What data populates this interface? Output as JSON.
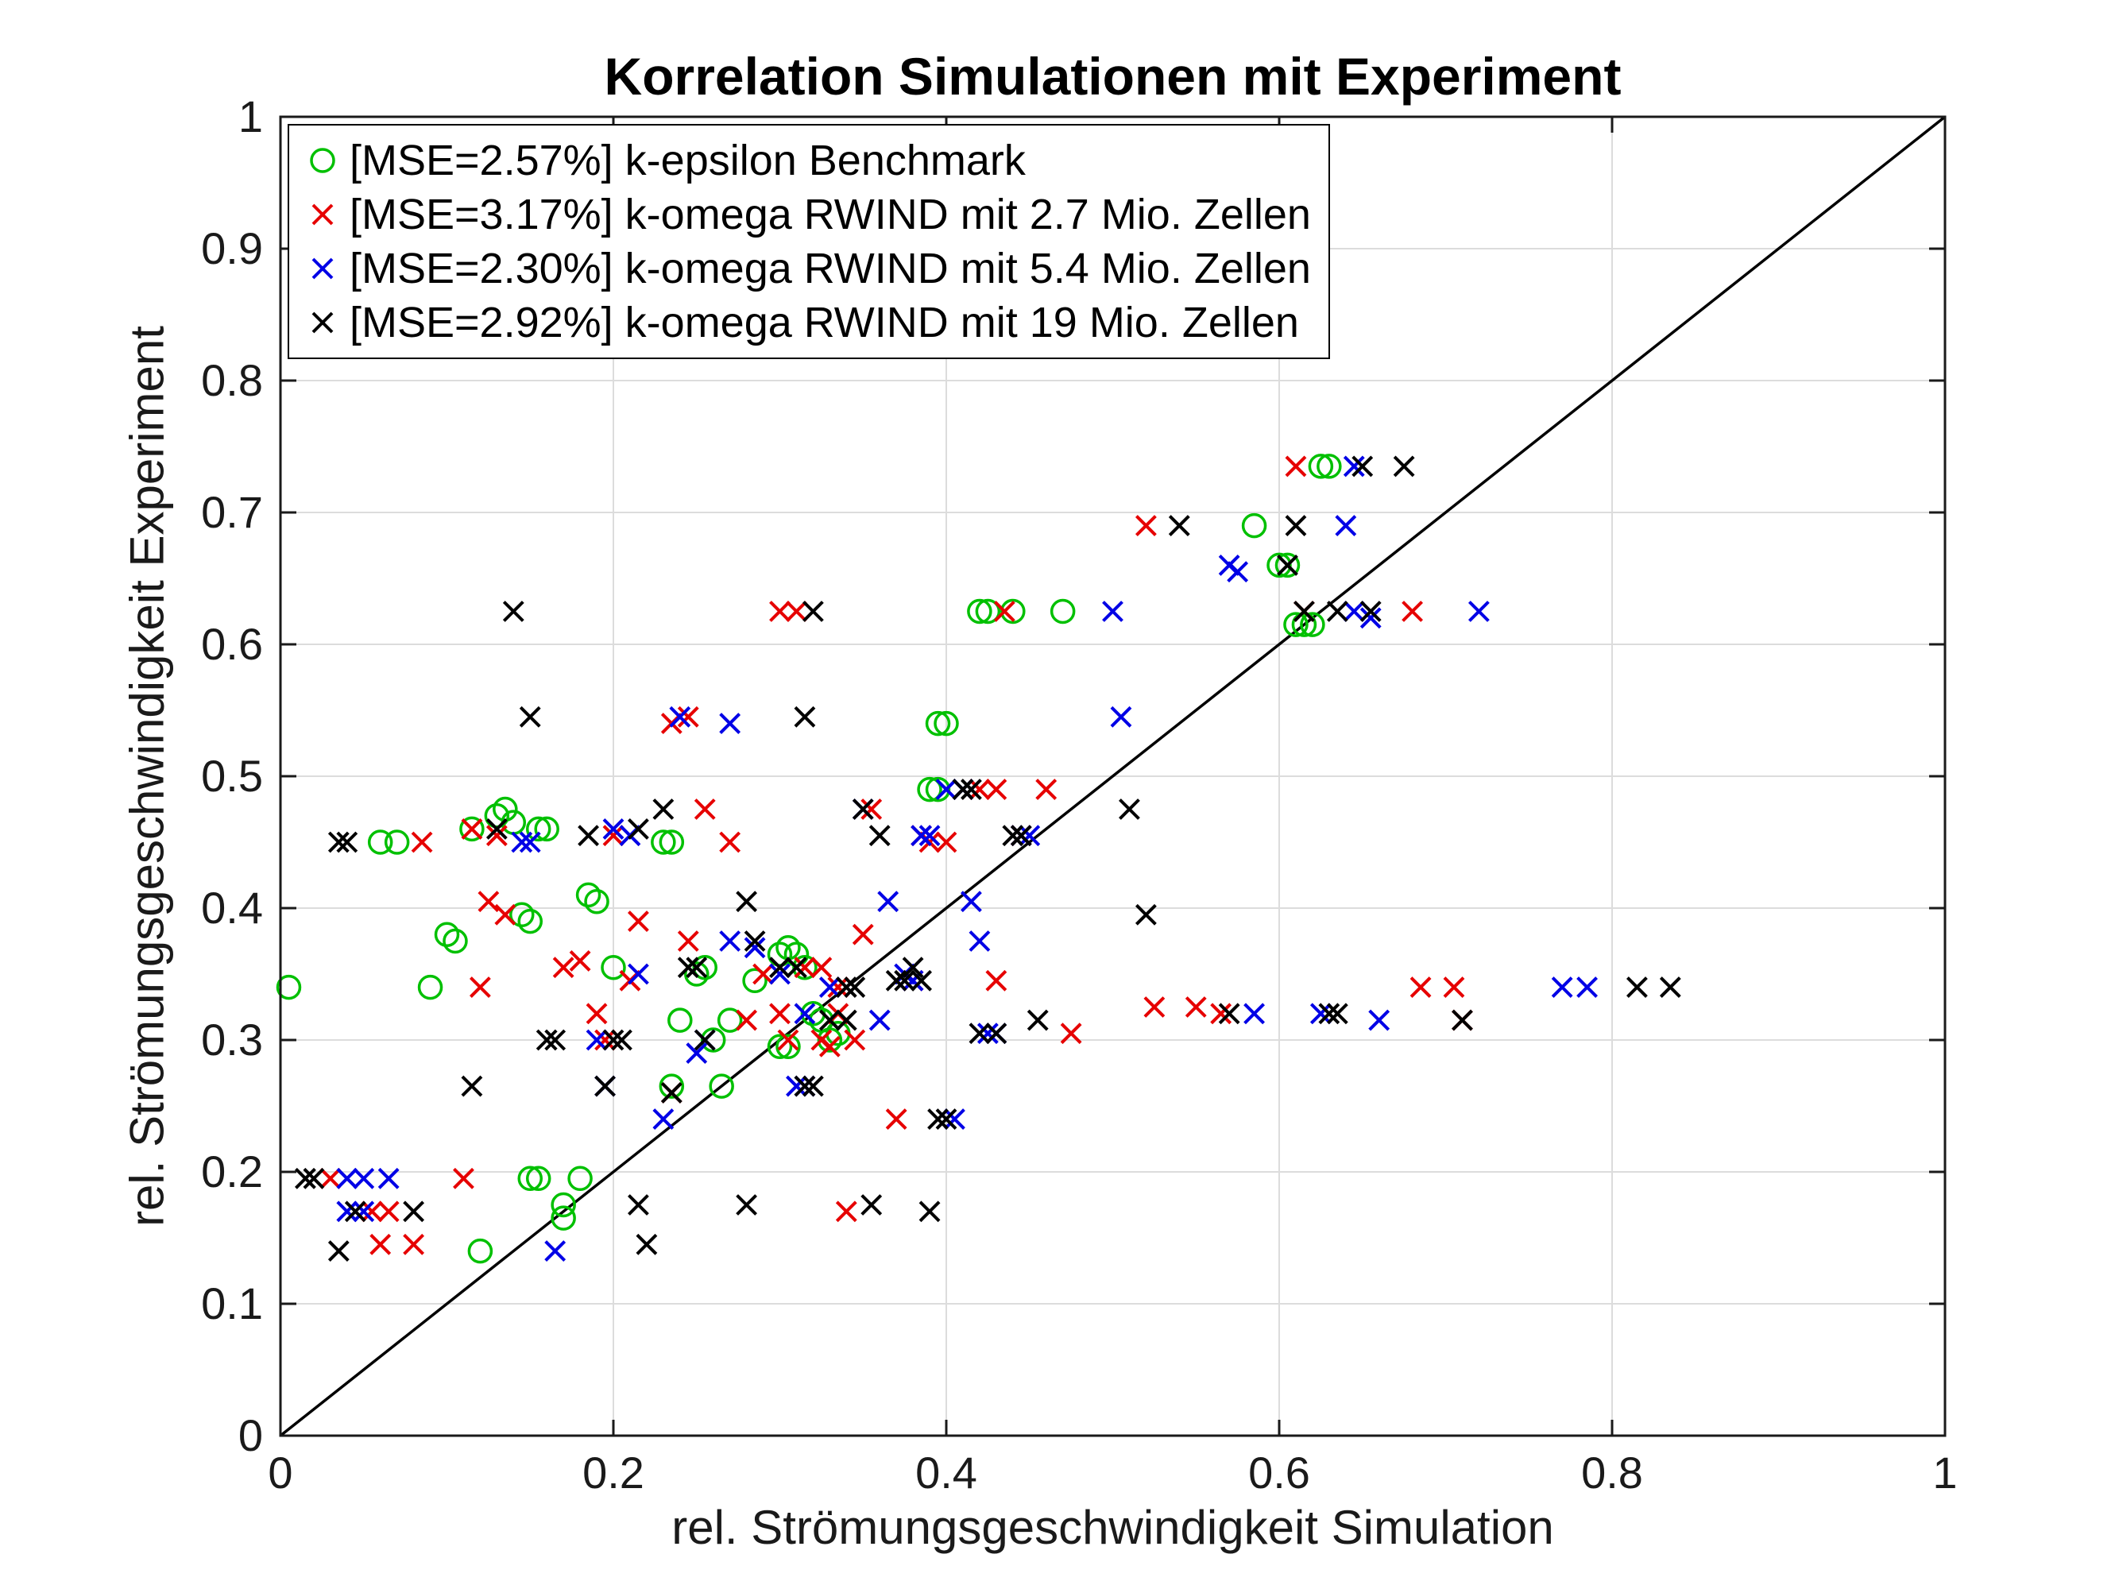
{
  "figure": {
    "background": "#ffffff",
    "text_color": "#1a1a1a",
    "axis_color": "#1a1a1a",
    "grid_color": "#dcdcdc"
  },
  "chart_data": {
    "type": "scatter",
    "title": "Korrelation Simulationen mit Experiment",
    "xlabel": "rel. Strömungsgeschwindigkeit Simulation",
    "ylabel": "rel. Strömungsgeschwindigkeit Experiment",
    "xlim": [
      0,
      1
    ],
    "ylim": [
      0,
      1
    ],
    "xticks": [
      0,
      0.2,
      0.4,
      0.6,
      0.8,
      1
    ],
    "xtick_labels": [
      "0",
      "0.2",
      "0.4",
      "0.6",
      "0.8",
      "1"
    ],
    "yticks": [
      0,
      0.1,
      0.2,
      0.3,
      0.4,
      0.5,
      0.6,
      0.7,
      0.8,
      0.9,
      1
    ],
    "ytick_labels": [
      "0",
      "0.1",
      "0.2",
      "0.3",
      "0.4",
      "0.5",
      "0.6",
      "0.7",
      "0.8",
      "0.9",
      "1"
    ],
    "grid": true,
    "legend_position": "top-left",
    "identity_line": {
      "from": [
        0,
        0
      ],
      "to": [
        1,
        1
      ],
      "color": "#000000"
    },
    "series": [
      {
        "name": "[MSE=2.57%] k-epsilon Benchmark",
        "mse_percent": 2.57,
        "marker": "circle",
        "color": "#00c000",
        "points": [
          [
            0.005,
            0.34
          ],
          [
            0.06,
            0.45
          ],
          [
            0.07,
            0.45
          ],
          [
            0.09,
            0.34
          ],
          [
            0.1,
            0.38
          ],
          [
            0.105,
            0.375
          ],
          [
            0.115,
            0.46
          ],
          [
            0.12,
            0.14
          ],
          [
            0.13,
            0.47
          ],
          [
            0.135,
            0.475
          ],
          [
            0.14,
            0.465
          ],
          [
            0.145,
            0.395
          ],
          [
            0.15,
            0.39
          ],
          [
            0.15,
            0.195
          ],
          [
            0.155,
            0.195
          ],
          [
            0.155,
            0.46
          ],
          [
            0.16,
            0.46
          ],
          [
            0.17,
            0.175
          ],
          [
            0.17,
            0.165
          ],
          [
            0.18,
            0.195
          ],
          [
            0.185,
            0.41
          ],
          [
            0.19,
            0.405
          ],
          [
            0.2,
            0.355
          ],
          [
            0.23,
            0.45
          ],
          [
            0.235,
            0.45
          ],
          [
            0.235,
            0.265
          ],
          [
            0.24,
            0.315
          ],
          [
            0.25,
            0.35
          ],
          [
            0.255,
            0.355
          ],
          [
            0.26,
            0.3
          ],
          [
            0.265,
            0.265
          ],
          [
            0.27,
            0.315
          ],
          [
            0.285,
            0.345
          ],
          [
            0.3,
            0.295
          ],
          [
            0.305,
            0.295
          ],
          [
            0.3,
            0.365
          ],
          [
            0.305,
            0.37
          ],
          [
            0.31,
            0.365
          ],
          [
            0.315,
            0.355
          ],
          [
            0.32,
            0.32
          ],
          [
            0.325,
            0.315
          ],
          [
            0.33,
            0.3
          ],
          [
            0.335,
            0.305
          ],
          [
            0.39,
            0.49
          ],
          [
            0.395,
            0.49
          ],
          [
            0.395,
            0.54
          ],
          [
            0.4,
            0.54
          ],
          [
            0.42,
            0.625
          ],
          [
            0.425,
            0.625
          ],
          [
            0.44,
            0.625
          ],
          [
            0.47,
            0.625
          ],
          [
            0.585,
            0.69
          ],
          [
            0.6,
            0.66
          ],
          [
            0.605,
            0.66
          ],
          [
            0.61,
            0.615
          ],
          [
            0.615,
            0.615
          ],
          [
            0.62,
            0.615
          ],
          [
            0.625,
            0.735
          ],
          [
            0.63,
            0.735
          ]
        ]
      },
      {
        "name": "[MSE=3.17%] k-omega RWIND mit 2.7 Mio. Zellen",
        "mse_percent": 3.17,
        "marker": "x",
        "color": "#e60000",
        "points": [
          [
            0.03,
            0.195
          ],
          [
            0.055,
            0.17
          ],
          [
            0.065,
            0.17
          ],
          [
            0.06,
            0.145
          ],
          [
            0.08,
            0.145
          ],
          [
            0.085,
            0.45
          ],
          [
            0.11,
            0.195
          ],
          [
            0.115,
            0.46
          ],
          [
            0.12,
            0.34
          ],
          [
            0.125,
            0.405
          ],
          [
            0.135,
            0.395
          ],
          [
            0.13,
            0.455
          ],
          [
            0.17,
            0.355
          ],
          [
            0.18,
            0.36
          ],
          [
            0.19,
            0.32
          ],
          [
            0.195,
            0.3
          ],
          [
            0.2,
            0.455
          ],
          [
            0.21,
            0.345
          ],
          [
            0.215,
            0.39
          ],
          [
            0.235,
            0.54
          ],
          [
            0.245,
            0.545
          ],
          [
            0.235,
            0.26
          ],
          [
            0.245,
            0.375
          ],
          [
            0.255,
            0.475
          ],
          [
            0.27,
            0.45
          ],
          [
            0.28,
            0.315
          ],
          [
            0.29,
            0.35
          ],
          [
            0.3,
            0.625
          ],
          [
            0.31,
            0.625
          ],
          [
            0.3,
            0.32
          ],
          [
            0.305,
            0.3
          ],
          [
            0.315,
            0.355
          ],
          [
            0.325,
            0.355
          ],
          [
            0.325,
            0.3
          ],
          [
            0.33,
            0.295
          ],
          [
            0.335,
            0.32
          ],
          [
            0.335,
            0.34
          ],
          [
            0.34,
            0.17
          ],
          [
            0.345,
            0.3
          ],
          [
            0.35,
            0.38
          ],
          [
            0.355,
            0.475
          ],
          [
            0.37,
            0.24
          ],
          [
            0.38,
            0.345
          ],
          [
            0.385,
            0.455
          ],
          [
            0.39,
            0.45
          ],
          [
            0.4,
            0.45
          ],
          [
            0.42,
            0.49
          ],
          [
            0.43,
            0.49
          ],
          [
            0.43,
            0.345
          ],
          [
            0.435,
            0.625
          ],
          [
            0.445,
            0.455
          ],
          [
            0.46,
            0.49
          ],
          [
            0.475,
            0.305
          ],
          [
            0.52,
            0.69
          ],
          [
            0.525,
            0.325
          ],
          [
            0.55,
            0.325
          ],
          [
            0.565,
            0.32
          ],
          [
            0.61,
            0.735
          ],
          [
            0.615,
            0.625
          ],
          [
            0.68,
            0.625
          ],
          [
            0.685,
            0.34
          ],
          [
            0.705,
            0.34
          ],
          [
            0.71,
            0.315
          ]
        ]
      },
      {
        "name": "[MSE=2.30%] k-omega RWIND mit 5.4 Mio. Zellen",
        "mse_percent": 2.3,
        "marker": "x",
        "color": "#0000e6",
        "points": [
          [
            0.04,
            0.195
          ],
          [
            0.05,
            0.195
          ],
          [
            0.04,
            0.17
          ],
          [
            0.05,
            0.17
          ],
          [
            0.065,
            0.195
          ],
          [
            0.145,
            0.45
          ],
          [
            0.15,
            0.45
          ],
          [
            0.165,
            0.14
          ],
          [
            0.19,
            0.3
          ],
          [
            0.195,
            0.265
          ],
          [
            0.2,
            0.46
          ],
          [
            0.21,
            0.455
          ],
          [
            0.215,
            0.35
          ],
          [
            0.23,
            0.24
          ],
          [
            0.24,
            0.545
          ],
          [
            0.25,
            0.29
          ],
          [
            0.255,
            0.3
          ],
          [
            0.27,
            0.54
          ],
          [
            0.27,
            0.375
          ],
          [
            0.285,
            0.37
          ],
          [
            0.3,
            0.35
          ],
          [
            0.31,
            0.265
          ],
          [
            0.315,
            0.265
          ],
          [
            0.315,
            0.32
          ],
          [
            0.33,
            0.34
          ],
          [
            0.35,
            0.475
          ],
          [
            0.36,
            0.315
          ],
          [
            0.365,
            0.405
          ],
          [
            0.375,
            0.35
          ],
          [
            0.38,
            0.345
          ],
          [
            0.385,
            0.455
          ],
          [
            0.39,
            0.455
          ],
          [
            0.4,
            0.49
          ],
          [
            0.41,
            0.49
          ],
          [
            0.405,
            0.24
          ],
          [
            0.415,
            0.405
          ],
          [
            0.42,
            0.375
          ],
          [
            0.425,
            0.305
          ],
          [
            0.43,
            0.305
          ],
          [
            0.445,
            0.455
          ],
          [
            0.45,
            0.455
          ],
          [
            0.5,
            0.625
          ],
          [
            0.505,
            0.545
          ],
          [
            0.57,
            0.66
          ],
          [
            0.575,
            0.655
          ],
          [
            0.585,
            0.32
          ],
          [
            0.625,
            0.32
          ],
          [
            0.64,
            0.69
          ],
          [
            0.645,
            0.735
          ],
          [
            0.645,
            0.625
          ],
          [
            0.655,
            0.62
          ],
          [
            0.66,
            0.315
          ],
          [
            0.72,
            0.625
          ],
          [
            0.77,
            0.34
          ],
          [
            0.785,
            0.34
          ]
        ]
      },
      {
        "name": "[MSE=2.92%] k-omega RWIND mit 19 Mio. Zellen",
        "mse_percent": 2.92,
        "marker": "x",
        "color": "#000000",
        "points": [
          [
            0.015,
            0.195
          ],
          [
            0.02,
            0.195
          ],
          [
            0.035,
            0.45
          ],
          [
            0.04,
            0.45
          ],
          [
            0.035,
            0.14
          ],
          [
            0.045,
            0.17
          ],
          [
            0.08,
            0.17
          ],
          [
            0.115,
            0.265
          ],
          [
            0.13,
            0.46
          ],
          [
            0.14,
            0.625
          ],
          [
            0.15,
            0.545
          ],
          [
            0.16,
            0.3
          ],
          [
            0.165,
            0.3
          ],
          [
            0.185,
            0.455
          ],
          [
            0.195,
            0.265
          ],
          [
            0.2,
            0.3
          ],
          [
            0.205,
            0.3
          ],
          [
            0.215,
            0.46
          ],
          [
            0.215,
            0.175
          ],
          [
            0.22,
            0.145
          ],
          [
            0.23,
            0.475
          ],
          [
            0.235,
            0.26
          ],
          [
            0.245,
            0.355
          ],
          [
            0.25,
            0.355
          ],
          [
            0.255,
            0.3
          ],
          [
            0.28,
            0.405
          ],
          [
            0.28,
            0.175
          ],
          [
            0.285,
            0.375
          ],
          [
            0.3,
            0.355
          ],
          [
            0.31,
            0.355
          ],
          [
            0.315,
            0.545
          ],
          [
            0.32,
            0.625
          ],
          [
            0.315,
            0.265
          ],
          [
            0.32,
            0.265
          ],
          [
            0.33,
            0.315
          ],
          [
            0.34,
            0.315
          ],
          [
            0.34,
            0.34
          ],
          [
            0.345,
            0.34
          ],
          [
            0.35,
            0.475
          ],
          [
            0.355,
            0.175
          ],
          [
            0.36,
            0.455
          ],
          [
            0.37,
            0.345
          ],
          [
            0.375,
            0.345
          ],
          [
            0.385,
            0.345
          ],
          [
            0.38,
            0.355
          ],
          [
            0.39,
            0.17
          ],
          [
            0.395,
            0.24
          ],
          [
            0.4,
            0.24
          ],
          [
            0.41,
            0.49
          ],
          [
            0.415,
            0.49
          ],
          [
            0.42,
            0.305
          ],
          [
            0.43,
            0.305
          ],
          [
            0.44,
            0.455
          ],
          [
            0.445,
            0.455
          ],
          [
            0.455,
            0.315
          ],
          [
            0.51,
            0.475
          ],
          [
            0.52,
            0.395
          ],
          [
            0.54,
            0.69
          ],
          [
            0.57,
            0.32
          ],
          [
            0.605,
            0.66
          ],
          [
            0.61,
            0.69
          ],
          [
            0.615,
            0.625
          ],
          [
            0.63,
            0.32
          ],
          [
            0.635,
            0.32
          ],
          [
            0.635,
            0.625
          ],
          [
            0.65,
            0.735
          ],
          [
            0.655,
            0.625
          ],
          [
            0.675,
            0.735
          ],
          [
            0.71,
            0.315
          ],
          [
            0.815,
            0.34
          ],
          [
            0.835,
            0.34
          ]
        ]
      }
    ]
  }
}
